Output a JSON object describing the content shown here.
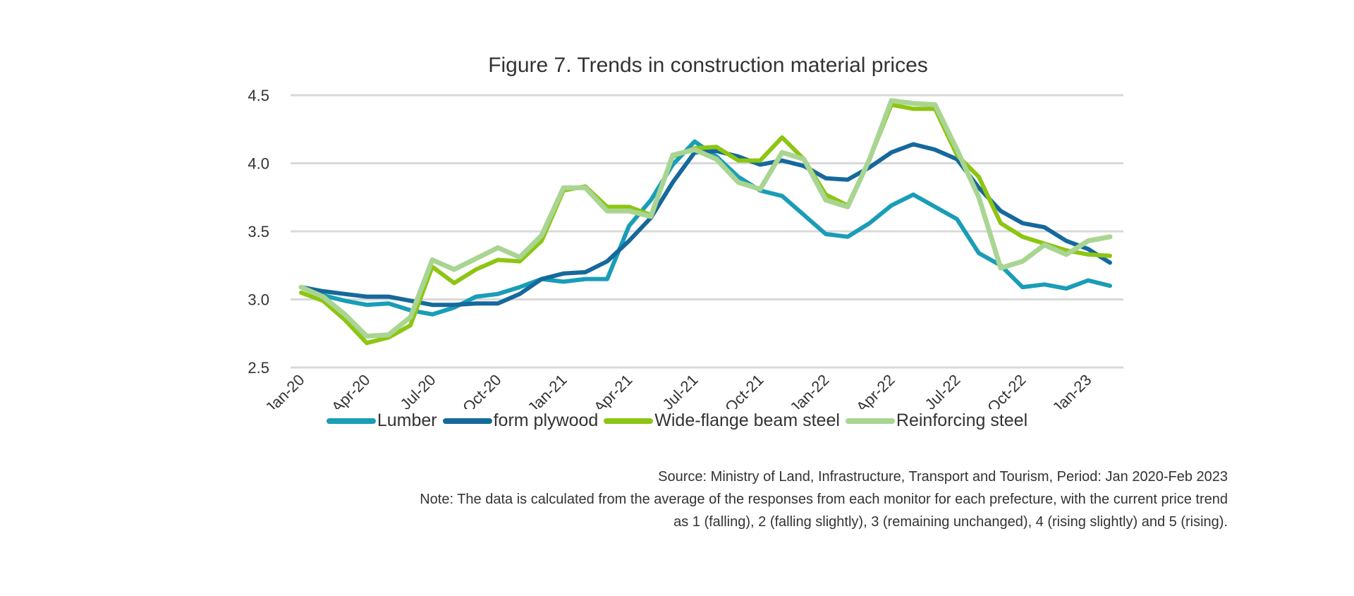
{
  "chart_data": {
    "type": "line",
    "title": "Figure 7. Trends in construction material prices",
    "xlabel": "",
    "ylabel": "",
    "ylim": [
      2.5,
      4.5
    ],
    "yticks": [
      "4.5",
      "4.0",
      "3.5",
      "3.0",
      "2.5"
    ],
    "grid": true,
    "legend_position": "bottom",
    "x": [
      "Jan-20",
      "Feb-20",
      "Mar-20",
      "Apr-20",
      "May-20",
      "Jun-20",
      "Jul-20",
      "Aug-20",
      "Sep-20",
      "Oct-20",
      "Nov-20",
      "Dec-20",
      "Jan-21",
      "Feb-21",
      "Mar-21",
      "Apr-21",
      "May-21",
      "Jun-21",
      "Jul-21",
      "Aug-21",
      "Sep-21",
      "Oct-21",
      "Nov-21",
      "Dec-21",
      "Jan-22",
      "Feb-22",
      "Mar-22",
      "Apr-22",
      "May-22",
      "Jun-22",
      "Jul-22",
      "Aug-22",
      "Sep-22",
      "Oct-22",
      "Nov-22",
      "Dec-22",
      "Jan-23",
      "Feb-23"
    ],
    "xtick_labels": [
      "Jan-20",
      "Apr-20",
      "Jul-20",
      "Oct-20",
      "Jan-21",
      "Apr-21",
      "Jul-21",
      "Oct-21",
      "Jan-22",
      "Apr-22",
      "Jul-22",
      "Oct-22",
      "Jan-23"
    ],
    "series": [
      {
        "name": "Lumber",
        "color": "#1a9db7",
        "values": [
          3.09,
          3.03,
          2.99,
          2.96,
          2.97,
          2.92,
          2.89,
          2.94,
          3.02,
          3.04,
          3.09,
          3.15,
          3.13,
          3.15,
          3.15,
          3.54,
          3.73,
          3.99,
          4.16,
          4.05,
          3.9,
          3.8,
          3.76,
          3.62,
          3.48,
          3.46,
          3.56,
          3.69,
          3.77,
          3.68,
          3.59,
          3.34,
          3.25,
          3.09,
          3.11,
          3.08,
          3.14,
          3.1
        ]
      },
      {
        "name": "form plywood",
        "color": "#15699b",
        "values": [
          3.09,
          3.06,
          3.04,
          3.02,
          3.02,
          2.99,
          2.96,
          2.96,
          2.97,
          2.97,
          3.04,
          3.15,
          3.19,
          3.2,
          3.28,
          3.43,
          3.6,
          3.86,
          4.08,
          4.09,
          4.05,
          3.99,
          4.02,
          3.98,
          3.89,
          3.88,
          3.97,
          4.08,
          4.14,
          4.1,
          4.03,
          3.82,
          3.65,
          3.56,
          3.53,
          3.43,
          3.37,
          3.27
        ]
      },
      {
        "name": "Wide-flange beam steel",
        "color": "#8dc513",
        "values": [
          3.05,
          2.99,
          2.85,
          2.68,
          2.72,
          2.81,
          3.24,
          3.12,
          3.22,
          3.29,
          3.28,
          3.43,
          3.8,
          3.83,
          3.68,
          3.68,
          3.62,
          4.05,
          4.11,
          4.12,
          4.02,
          4.02,
          4.19,
          4.03,
          3.77,
          3.69,
          4.03,
          4.43,
          4.4,
          4.4,
          4.06,
          3.9,
          3.56,
          3.46,
          3.41,
          3.36,
          3.33,
          3.32
        ]
      },
      {
        "name": "Reinforcing steel",
        "color": "#a9d592",
        "values": [
          3.09,
          3.02,
          2.89,
          2.73,
          2.74,
          2.87,
          3.29,
          3.22,
          3.3,
          3.38,
          3.31,
          3.47,
          3.82,
          3.82,
          3.65,
          3.65,
          3.61,
          4.06,
          4.1,
          4.03,
          3.86,
          3.81,
          4.08,
          4.03,
          3.73,
          3.68,
          4.03,
          4.46,
          4.44,
          4.43,
          4.1,
          3.75,
          3.23,
          3.28,
          3.4,
          3.33,
          3.43,
          3.46
        ]
      }
    ]
  },
  "notes": {
    "source": "Source: Ministry of Land, Infrastructure, Transport and Tourism, Period: Jan 2020-Feb 2023",
    "note_line1": "Note: The data is calculated from the average of the responses from each monitor for each prefecture, with the current price trend",
    "note_line2": "as 1 (falling), 2 (falling slightly), 3 (remaining unchanged), 4 (rising slightly) and 5 (rising)."
  }
}
